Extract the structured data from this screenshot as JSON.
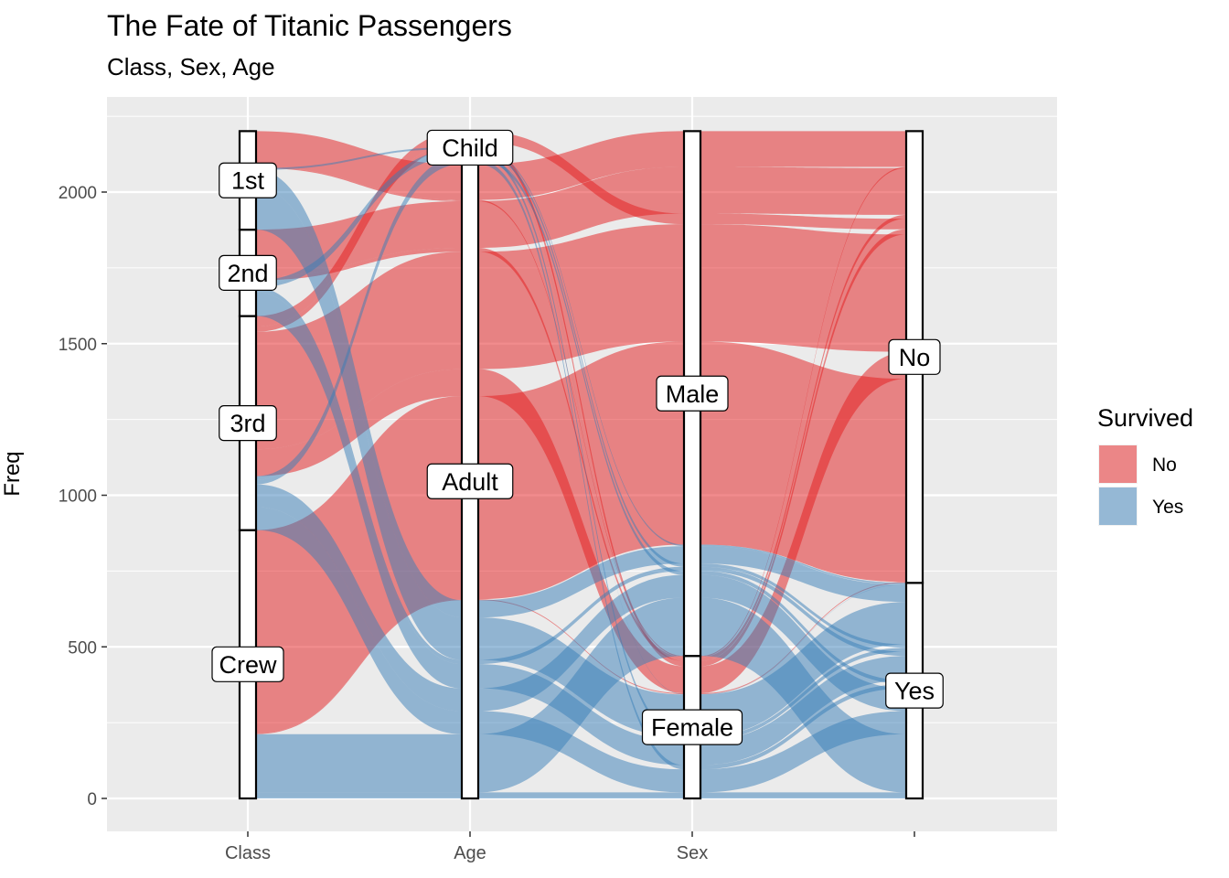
{
  "chart_data": {
    "type": "alluvial",
    "title": "The Fate of Titanic Passengers",
    "subtitle": "Class, Sex, Age",
    "ylabel": "Freq",
    "ylim": [
      0,
      2201
    ],
    "yticks": [
      0,
      500,
      1000,
      1500,
      2000
    ],
    "axes": [
      "Class",
      "Age",
      "Sex",
      ""
    ],
    "strata": {
      "Class": [
        {
          "label": "Crew",
          "value": 885
        },
        {
          "label": "3rd",
          "value": 706
        },
        {
          "label": "2nd",
          "value": 285
        },
        {
          "label": "1st",
          "value": 325
        }
      ],
      "Age": [
        {
          "label": "Adult",
          "value": 2092
        },
        {
          "label": "Child",
          "value": 109
        }
      ],
      "Sex": [
        {
          "label": "Female",
          "value": 470
        },
        {
          "label": "Male",
          "value": 1731
        }
      ],
      "Survived": [
        {
          "label": "Yes",
          "value": 711
        },
        {
          "label": "No",
          "value": 1490
        }
      ]
    },
    "flows": [
      {
        "class": "1st",
        "sex": "Male",
        "age": "Child",
        "survived": "No",
        "value": 0
      },
      {
        "class": "2nd",
        "sex": "Male",
        "age": "Child",
        "survived": "No",
        "value": 0
      },
      {
        "class": "3rd",
        "sex": "Male",
        "age": "Child",
        "survived": "No",
        "value": 35
      },
      {
        "class": "Crew",
        "sex": "Male",
        "age": "Child",
        "survived": "No",
        "value": 0
      },
      {
        "class": "1st",
        "sex": "Female",
        "age": "Child",
        "survived": "No",
        "value": 0
      },
      {
        "class": "2nd",
        "sex": "Female",
        "age": "Child",
        "survived": "No",
        "value": 0
      },
      {
        "class": "3rd",
        "sex": "Female",
        "age": "Child",
        "survived": "No",
        "value": 17
      },
      {
        "class": "Crew",
        "sex": "Female",
        "age": "Child",
        "survived": "No",
        "value": 0
      },
      {
        "class": "1st",
        "sex": "Male",
        "age": "Adult",
        "survived": "No",
        "value": 118
      },
      {
        "class": "2nd",
        "sex": "Male",
        "age": "Adult",
        "survived": "No",
        "value": 154
      },
      {
        "class": "3rd",
        "sex": "Male",
        "age": "Adult",
        "survived": "No",
        "value": 387
      },
      {
        "class": "Crew",
        "sex": "Male",
        "age": "Adult",
        "survived": "No",
        "value": 670
      },
      {
        "class": "1st",
        "sex": "Female",
        "age": "Adult",
        "survived": "No",
        "value": 4
      },
      {
        "class": "2nd",
        "sex": "Female",
        "age": "Adult",
        "survived": "No",
        "value": 13
      },
      {
        "class": "3rd",
        "sex": "Female",
        "age": "Adult",
        "survived": "No",
        "value": 89
      },
      {
        "class": "Crew",
        "sex": "Female",
        "age": "Adult",
        "survived": "No",
        "value": 3
      },
      {
        "class": "1st",
        "sex": "Male",
        "age": "Child",
        "survived": "Yes",
        "value": 5
      },
      {
        "class": "2nd",
        "sex": "Male",
        "age": "Child",
        "survived": "Yes",
        "value": 11
      },
      {
        "class": "3rd",
        "sex": "Male",
        "age": "Child",
        "survived": "Yes",
        "value": 13
      },
      {
        "class": "Crew",
        "sex": "Male",
        "age": "Child",
        "survived": "Yes",
        "value": 0
      },
      {
        "class": "1st",
        "sex": "Female",
        "age": "Child",
        "survived": "Yes",
        "value": 1
      },
      {
        "class": "2nd",
        "sex": "Female",
        "age": "Child",
        "survived": "Yes",
        "value": 13
      },
      {
        "class": "3rd",
        "sex": "Female",
        "age": "Child",
        "survived": "Yes",
        "value": 14
      },
      {
        "class": "Crew",
        "sex": "Female",
        "age": "Child",
        "survived": "Yes",
        "value": 0
      },
      {
        "class": "1st",
        "sex": "Male",
        "age": "Adult",
        "survived": "Yes",
        "value": 57
      },
      {
        "class": "2nd",
        "sex": "Male",
        "age": "Adult",
        "survived": "Yes",
        "value": 14
      },
      {
        "class": "3rd",
        "sex": "Male",
        "age": "Adult",
        "survived": "Yes",
        "value": 75
      },
      {
        "class": "Crew",
        "sex": "Male",
        "age": "Adult",
        "survived": "Yes",
        "value": 192
      },
      {
        "class": "1st",
        "sex": "Female",
        "age": "Adult",
        "survived": "Yes",
        "value": 140
      },
      {
        "class": "2nd",
        "sex": "Female",
        "age": "Adult",
        "survived": "Yes",
        "value": 80
      },
      {
        "class": "3rd",
        "sex": "Female",
        "age": "Adult",
        "survived": "Yes",
        "value": 76
      },
      {
        "class": "Crew",
        "sex": "Female",
        "age": "Adult",
        "survived": "Yes",
        "value": 20
      }
    ],
    "legend": {
      "title": "Survived",
      "position": "right",
      "entries": [
        {
          "label": "No",
          "color": "#E41A1C"
        },
        {
          "label": "Yes",
          "color": "#377EB8"
        }
      ]
    },
    "grid": true,
    "panel_background": "#EBEBEB"
  }
}
